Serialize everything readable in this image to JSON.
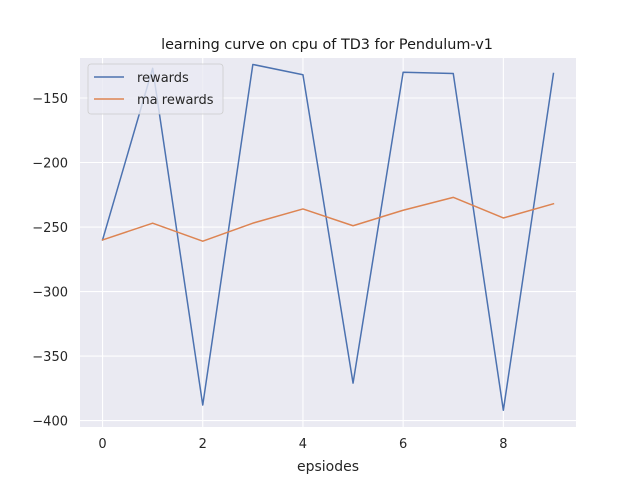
{
  "chart_data": {
    "type": "line",
    "title": "learning curve on cpu of TD3 for Pendulum-v1",
    "xlabel": "epsiodes",
    "ylabel": "",
    "x": [
      0,
      1,
      2,
      3,
      4,
      5,
      6,
      7,
      8,
      9
    ],
    "xlim": [
      -0.45,
      9.45
    ],
    "ylim": [
      -405,
      -119
    ],
    "xticks": [
      0,
      2,
      4,
      6,
      8
    ],
    "yticks": [
      -400,
      -350,
      -300,
      -250,
      -200,
      -150
    ],
    "xtick_labels": [
      "0",
      "2",
      "4",
      "6",
      "8"
    ],
    "ytick_labels": [
      "−400",
      "−350",
      "−300",
      "−250",
      "−200",
      "−150"
    ],
    "grid": true,
    "legend_position": "top-left",
    "background": "#eaeaf2",
    "series": [
      {
        "name": "rewards",
        "color": "#4c72b0",
        "values": [
          -260,
          -127,
          -388,
          -124,
          -132,
          -371,
          -130,
          -131,
          -392,
          -131
        ]
      },
      {
        "name": "ma rewards",
        "color": "#dd8452",
        "values": [
          -260,
          -247,
          -261,
          -247,
          -236,
          -249,
          -237,
          -227,
          -243,
          -232
        ]
      }
    ]
  }
}
